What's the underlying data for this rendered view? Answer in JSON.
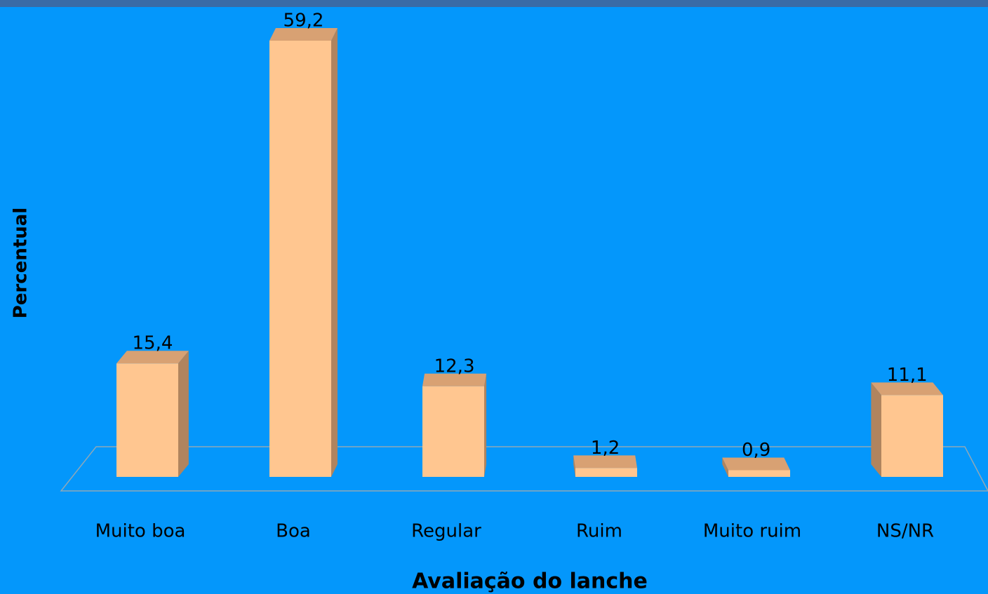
{
  "chart_data": {
    "type": "bar3d",
    "categories": [
      "Muito boa",
      "Boa",
      "Regular",
      "Ruim",
      "Muito ruim",
      "NS/NR"
    ],
    "values": [
      15.4,
      59.2,
      12.3,
      1.2,
      0.9,
      11.1
    ],
    "value_labels": [
      "15,4",
      "59,2",
      "12,3",
      "1,2",
      "0,9",
      "11,1"
    ],
    "color": "#ffc690",
    "x_label": "Avaliação do lanche",
    "y_label": "Percentual"
  }
}
